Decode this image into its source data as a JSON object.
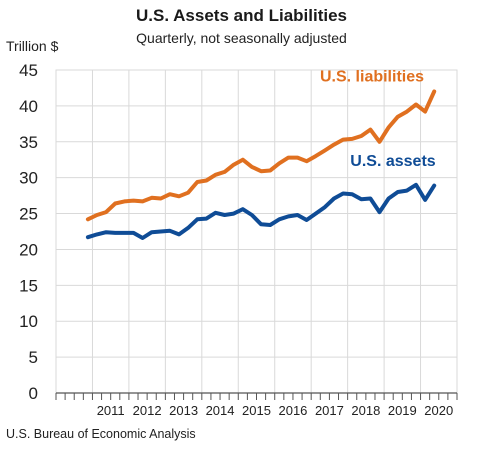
{
  "chart_data": {
    "type": "line",
    "title": "U.S. Assets and Liabilities",
    "subtitle": "Quarterly, not seasonally adjusted",
    "ylabel": "Trillion $",
    "source": "U.S. Bureau of Economic Analysis",
    "ylim": [
      0,
      45
    ],
    "yticks": [
      0,
      5,
      10,
      15,
      20,
      25,
      30,
      35,
      40,
      45
    ],
    "xticks": [
      "2011",
      "2012",
      "2013",
      "2014",
      "2015",
      "2016",
      "2017",
      "2018",
      "2019",
      "2020"
    ],
    "grid": true,
    "quarters_per_year": 4,
    "start_year": 2010,
    "end_year": 2020,
    "x": [
      "2010 Q4",
      "2011 Q1",
      "2011 Q2",
      "2011 Q3",
      "2011 Q4",
      "2012 Q1",
      "2012 Q2",
      "2012 Q3",
      "2012 Q4",
      "2013 Q1",
      "2013 Q2",
      "2013 Q3",
      "2013 Q4",
      "2014 Q1",
      "2014 Q2",
      "2014 Q3",
      "2014 Q4",
      "2015 Q1",
      "2015 Q2",
      "2015 Q3",
      "2015 Q4",
      "2016 Q1",
      "2016 Q2",
      "2016 Q3",
      "2016 Q4",
      "2017 Q1",
      "2017 Q2",
      "2017 Q3",
      "2017 Q4",
      "2018 Q1",
      "2018 Q2",
      "2018 Q3",
      "2018 Q4",
      "2019 Q1",
      "2019 Q2",
      "2019 Q3",
      "2019 Q4",
      "2020 Q1",
      "2020 Q2"
    ],
    "series": [
      {
        "name": "U.S. liabilities",
        "color": "#e07020",
        "values": [
          24.2,
          24.8,
          25.2,
          26.4,
          26.7,
          26.8,
          26.7,
          27.2,
          27.1,
          27.7,
          27.4,
          27.9,
          29.4,
          29.6,
          30.4,
          30.8,
          31.8,
          32.5,
          31.5,
          30.9,
          31.0,
          32.0,
          32.8,
          32.8,
          32.3,
          33.0,
          33.8,
          34.6,
          35.3,
          35.4,
          35.8,
          36.7,
          35.0,
          37.0,
          38.5,
          39.2,
          40.2,
          39.2,
          42.0
        ]
      },
      {
        "name": "U.S. assets",
        "color": "#0f4c96",
        "values": [
          21.7,
          22.1,
          22.4,
          22.3,
          22.3,
          22.3,
          21.6,
          22.4,
          22.5,
          22.6,
          22.1,
          23.0,
          24.2,
          24.3,
          25.1,
          24.8,
          25.0,
          25.6,
          24.8,
          23.5,
          23.4,
          24.2,
          24.6,
          24.8,
          24.1,
          25.0,
          25.9,
          27.1,
          27.8,
          27.7,
          27.0,
          27.1,
          25.2,
          27.1,
          28.0,
          28.2,
          29.0,
          26.9,
          28.9
        ]
      }
    ]
  }
}
